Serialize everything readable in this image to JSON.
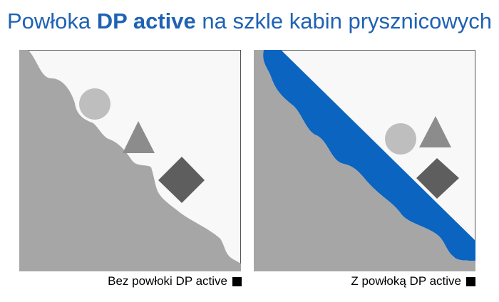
{
  "title": {
    "prefix": "Powłoka ",
    "brand": "DP active",
    "suffix": " na szkle kabin prysznicowych"
  },
  "panels": [
    {
      "caption": "Bez powłoki DP active",
      "coated": false
    },
    {
      "caption": "Z powłoką DP active",
      "coated": true
    }
  ],
  "colors": {
    "title": "#1f62b4",
    "glass": "#a6a6a6",
    "coating": "#0a64c0",
    "circle": "#bebebe",
    "triangle": "#8c8c8c",
    "square": "#5e5e5e",
    "background": "#f8f8f8",
    "border": "#555555"
  }
}
